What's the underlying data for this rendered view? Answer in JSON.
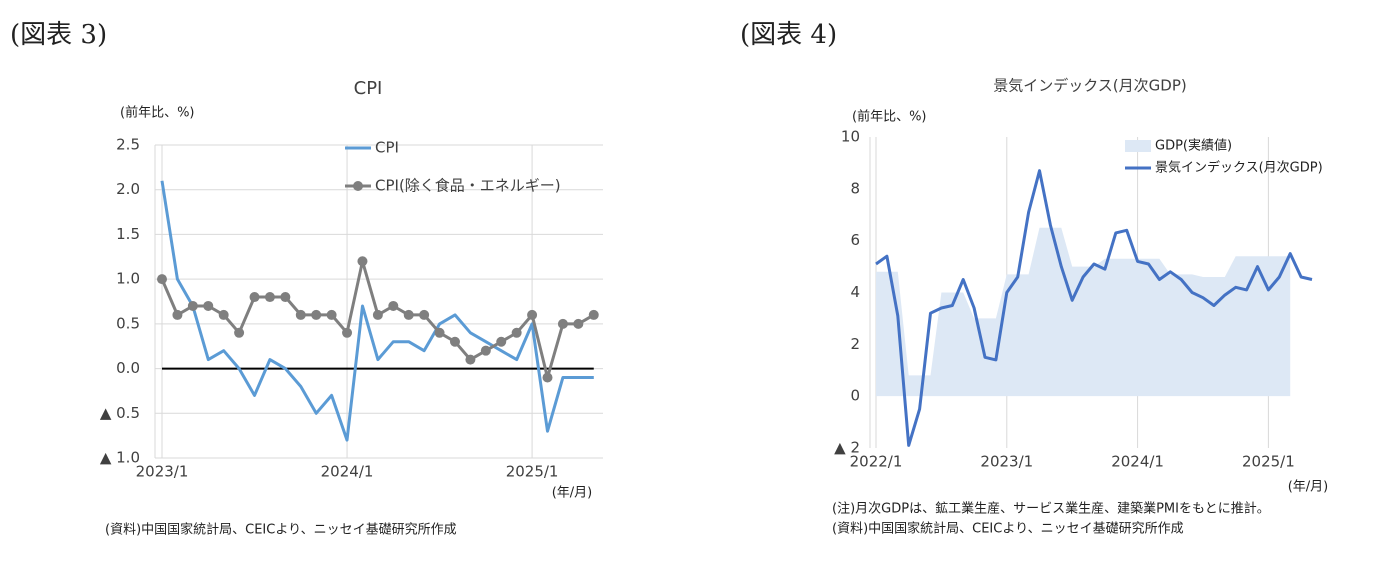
{
  "chart_data": [
    {
      "type": "line",
      "figure_label": "(図表 3)",
      "title": "CPI",
      "y_label": "(前年比、%)",
      "x_label": "(年/月)",
      "source": "(資料)中国国家統計局、CEICより、ニッセイ基礎研究所作成",
      "categories": [
        "2023/1",
        null,
        null,
        null,
        null,
        null,
        null,
        null,
        null,
        null,
        null,
        null,
        "2024/1",
        null,
        null,
        null,
        null,
        null,
        null,
        null,
        null,
        null,
        null,
        null,
        "2025/1",
        null,
        null,
        null,
        null
      ],
      "series": [
        {
          "name": "CPI",
          "color": "#5b9bd5",
          "style": "line",
          "marker": false,
          "values": [
            2.1,
            1.0,
            0.7,
            0.1,
            0.2,
            0.0,
            -0.3,
            0.1,
            0.0,
            -0.2,
            -0.5,
            -0.3,
            -0.8,
            0.7,
            0.1,
            0.3,
            0.3,
            0.2,
            0.5,
            0.6,
            0.4,
            0.3,
            0.2,
            0.1,
            0.5,
            -0.7,
            -0.1,
            -0.1,
            -0.1
          ]
        },
        {
          "name": "CPI(除く食品・エネルギー)",
          "color": "#7f7f7f",
          "style": "line",
          "marker": true,
          "values": [
            1.0,
            0.6,
            0.7,
            0.7,
            0.6,
            0.4,
            0.8,
            0.8,
            0.8,
            0.6,
            0.6,
            0.6,
            0.4,
            1.2,
            0.6,
            0.7,
            0.6,
            0.6,
            0.4,
            0.3,
            0.1,
            0.2,
            0.3,
            0.4,
            0.6,
            -0.1,
            0.5,
            0.5,
            0.6
          ]
        }
      ],
      "ylim": [
        -1.0,
        2.5
      ],
      "yticks": [
        {
          "value": 2.5,
          "label": "2.5"
        },
        {
          "value": 2.0,
          "label": "2.0"
        },
        {
          "value": 1.5,
          "label": "1.5"
        },
        {
          "value": 1.0,
          "label": "1.0"
        },
        {
          "value": 0.5,
          "label": "0.5"
        },
        {
          "value": 0.0,
          "label": "0.0"
        },
        {
          "value": -0.5,
          "label": "▲ 0.5"
        },
        {
          "value": -1.0,
          "label": "▲ 1.0"
        }
      ],
      "grid": "both",
      "zero_line": true,
      "legend": "top"
    },
    {
      "type": "line",
      "figure_label": "(図表 4)",
      "title": "景気インデックス(月次GDP)",
      "y_label": "(前年比、%)",
      "x_label": "(年/月)",
      "notes": [
        "(注)月次GDPは、鉱工業生産、サービス業生産、建築業PMIをもとに推計。",
        "(資料)中国国家統計局、CEICより、ニッセイ基礎研究所作成"
      ],
      "categories": [
        "2022/1",
        null,
        null,
        null,
        null,
        null,
        null,
        null,
        null,
        null,
        null,
        null,
        "2023/1",
        null,
        null,
        null,
        null,
        null,
        null,
        null,
        null,
        null,
        null,
        null,
        "2024/1",
        null,
        null,
        null,
        null,
        null,
        null,
        null,
        null,
        null,
        null,
        null,
        "2025/1",
        null,
        null,
        null,
        null
      ],
      "series": [
        {
          "name": "GDP(実績値)",
          "color": "#dde8f5",
          "style": "area",
          "marker": false,
          "values": [
            4.8,
            4.8,
            4.8,
            0.8,
            0.8,
            0.8,
            4.0,
            4.0,
            4.0,
            3.0,
            3.0,
            3.0,
            4.7,
            4.7,
            4.7,
            6.5,
            6.5,
            6.5,
            5.0,
            5.0,
            5.0,
            5.3,
            5.3,
            5.3,
            5.3,
            5.3,
            5.3,
            4.7,
            4.7,
            4.7,
            4.6,
            4.6,
            4.6,
            5.4,
            5.4,
            5.4,
            5.4,
            5.4,
            5.4,
            null,
            null
          ]
        },
        {
          "name": "景気インデックス(月次GDP)",
          "color": "#4472c4",
          "style": "line",
          "marker": false,
          "values": [
            5.1,
            5.4,
            3.1,
            -1.9,
            -0.5,
            3.2,
            3.4,
            3.5,
            4.5,
            3.4,
            1.5,
            1.4,
            4.0,
            4.6,
            7.1,
            8.7,
            6.6,
            5.0,
            3.7,
            4.6,
            5.1,
            4.9,
            6.3,
            6.4,
            5.2,
            5.1,
            4.5,
            4.8,
            4.5,
            4.0,
            3.8,
            3.5,
            3.9,
            4.2,
            4.1,
            5.0,
            4.1,
            4.6,
            5.5,
            4.6,
            4.5
          ]
        }
      ],
      "ylim": [
        -2,
        10
      ],
      "yticks": [
        10,
        8,
        6,
        4,
        2,
        0,
        {
          "value": -2,
          "label": "▲ 2"
        }
      ],
      "grid": "x",
      "zero_line": false,
      "legend": "top-right"
    }
  ]
}
